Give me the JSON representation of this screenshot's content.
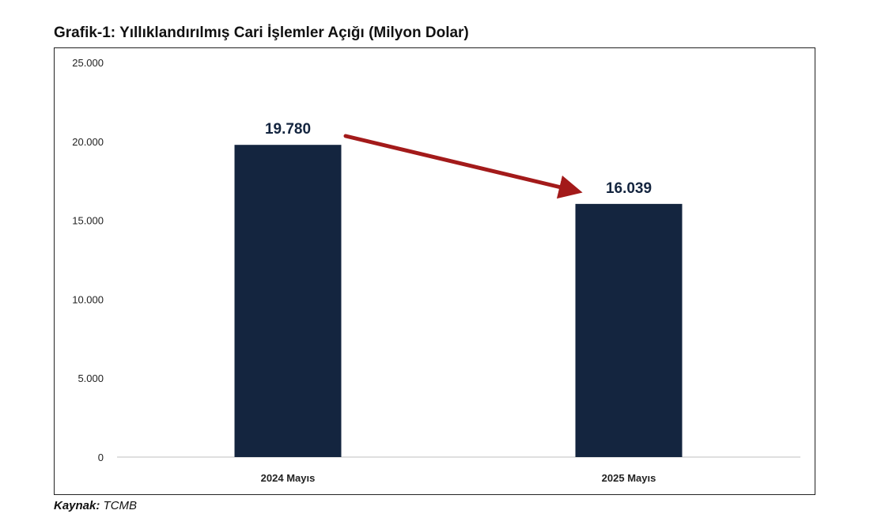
{
  "chart_data": {
    "type": "bar",
    "title": "Grafik-1: Yıllıklandırılmış Cari İşlemler Açığı (Milyon Dolar)",
    "categories": [
      "2024 Mayıs",
      "2025 Mayıs"
    ],
    "values": [
      19780,
      16039
    ],
    "value_labels": [
      "19.780",
      "16.039"
    ],
    "ylim": [
      0,
      25000
    ],
    "yticks": [
      0,
      5000,
      10000,
      15000,
      20000,
      25000
    ],
    "ytick_labels": [
      "0",
      "5.000",
      "10.000",
      "15.000",
      "20.000",
      "25.000"
    ],
    "grid": false,
    "bar_color": "#14253f",
    "annotation": {
      "type": "arrow",
      "from": "2024 Mayıs",
      "to": "2025 Mayıs",
      "color": "#a31a1a"
    }
  },
  "source": {
    "label": "Kaynak:",
    "value": "TCMB"
  }
}
